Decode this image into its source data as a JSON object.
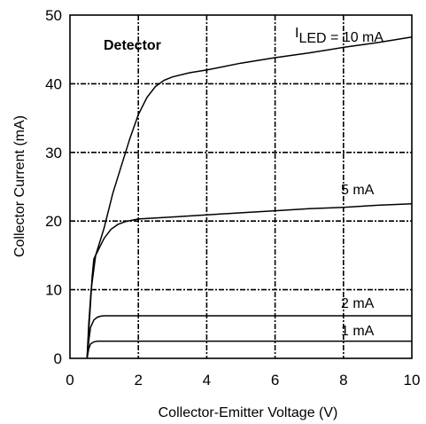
{
  "chart_data": {
    "type": "line",
    "title": "Detector",
    "xlabel": "Collector-Emitter Voltage (V)",
    "ylabel": "Collector Current (mA)",
    "xlim": [
      0,
      10
    ],
    "ylim": [
      0,
      50
    ],
    "x_ticks": [
      "0",
      "2",
      "4",
      "6",
      "8",
      "10"
    ],
    "y_ticks": [
      "0",
      "10",
      "20",
      "30",
      "40",
      "50"
    ],
    "grid": true,
    "series": [
      {
        "name_prefix": "I",
        "name_subscript": "LED",
        "name_suffix": " = 10 mA",
        "x": [
          0.5,
          0.55,
          0.62,
          0.75,
          1.0,
          1.25,
          1.5,
          1.75,
          2.0,
          2.25,
          2.5,
          2.75,
          3.0,
          3.5,
          4.0,
          5.0,
          6.0,
          7.0,
          8.0,
          9.0,
          10.0
        ],
        "y": [
          0,
          5,
          10,
          15,
          19,
          24,
          28,
          32,
          35.5,
          38,
          39.6,
          40.5,
          41,
          41.6,
          42,
          43,
          43.8,
          44.5,
          45.3,
          46,
          46.8
        ]
      },
      {
        "name": "5 mA",
        "x": [
          0.5,
          0.55,
          0.6,
          0.65,
          0.7,
          0.8,
          0.9,
          1.0,
          1.2,
          1.4,
          1.6,
          1.8,
          2.0,
          3.0,
          4.0,
          5.0,
          6.0,
          7.0,
          8.0,
          9.0,
          10.0
        ],
        "y": [
          0,
          4,
          8,
          12,
          14.5,
          15.5,
          16.5,
          17.5,
          18.8,
          19.5,
          19.9,
          20.1,
          20.3,
          20.6,
          20.9,
          21.2,
          21.5,
          21.8,
          22.0,
          22.3,
          22.5
        ]
      },
      {
        "name": "2 mA",
        "x": [
          0.5,
          0.55,
          0.6,
          0.7,
          0.8,
          0.9,
          1.0,
          1.2,
          2.0,
          4.0,
          6.0,
          8.0,
          10.0
        ],
        "y": [
          0,
          2.5,
          4.5,
          5.6,
          6.0,
          6.15,
          6.2,
          6.2,
          6.2,
          6.2,
          6.2,
          6.2,
          6.2
        ]
      },
      {
        "name": "1 mA",
        "x": [
          0.5,
          0.55,
          0.6,
          0.7,
          0.8,
          1.0,
          2.0,
          4.0,
          6.0,
          8.0,
          10.0
        ],
        "y": [
          0,
          1.4,
          2.1,
          2.4,
          2.5,
          2.5,
          2.5,
          2.5,
          2.5,
          2.5,
          2.5
        ]
      }
    ]
  }
}
